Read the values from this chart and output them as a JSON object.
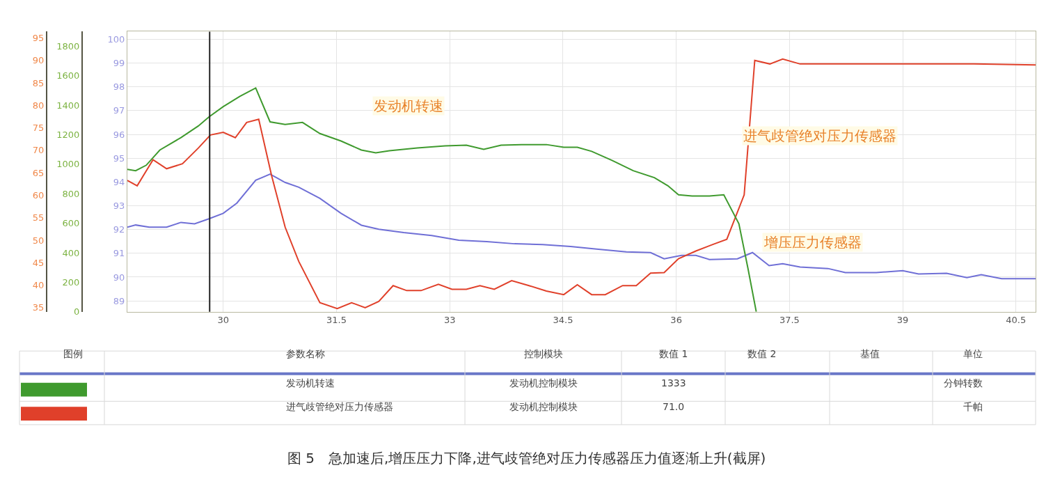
{
  "chart_data": {
    "type": "line",
    "series": [
      {
        "name": "发动机转速",
        "color": "#3f9a2e",
        "axis": "y3",
        "x": [
          28.73,
          28.84,
          28.98,
          29.16,
          29.44,
          29.67,
          29.81,
          30.0,
          30.22,
          30.43,
          30.62,
          30.82,
          31.05,
          31.28,
          31.56,
          31.83,
          32.02,
          32.2,
          32.57,
          32.94,
          33.22,
          33.45,
          33.68,
          33.95,
          34.28,
          34.51,
          34.69,
          34.88,
          35.15,
          35.43,
          35.71,
          35.89,
          36.03,
          36.21,
          36.44,
          36.63,
          36.83,
          36.95,
          37.06
        ],
        "values": [
          965,
          956,
          993,
          1096,
          1180,
          1259,
          1320,
          1390,
          1460,
          1516,
          1287,
          1269,
          1283,
          1208,
          1157,
          1096,
          1077,
          1091,
          1110,
          1124,
          1129,
          1101,
          1129,
          1133,
          1133,
          1115,
          1115,
          1087,
          1026,
          956,
          909,
          854,
          793,
          784,
          784,
          793,
          597,
          294,
          0
        ]
      },
      {
        "name": "进气歧管绝对压力传感器",
        "color": "#e0402a",
        "axis": "y2",
        "x": [
          28.73,
          28.86,
          29.07,
          29.25,
          29.46,
          29.67,
          29.83,
          30.0,
          30.16,
          30.31,
          30.47,
          30.64,
          30.82,
          31.0,
          31.28,
          31.51,
          31.7,
          31.88,
          32.06,
          32.25,
          32.43,
          32.62,
          32.85,
          33.03,
          33.22,
          33.4,
          33.59,
          33.82,
          34.05,
          34.28,
          34.51,
          34.69,
          34.88,
          35.06,
          35.29,
          35.47,
          35.66,
          35.84,
          36.03,
          36.26,
          36.49,
          36.67,
          36.9,
          37.04,
          37.24,
          37.41,
          37.64,
          38.1,
          39.02,
          39.94,
          40.76
        ],
        "values": [
          63.3,
          62.1,
          67.9,
          65.9,
          67.0,
          70.5,
          73.4,
          74.0,
          72.8,
          76.2,
          76.9,
          64.4,
          52.9,
          45.3,
          36.1,
          34.8,
          36.1,
          35.0,
          36.4,
          39.9,
          38.8,
          38.8,
          40.2,
          39.1,
          39.1,
          39.9,
          39.1,
          41.0,
          39.9,
          38.7,
          37.9,
          40.1,
          37.9,
          37.9,
          39.9,
          39.9,
          42.7,
          42.8,
          45.9,
          47.6,
          49.1,
          50.2,
          60.1,
          90.0,
          89.2,
          90.3,
          89.2,
          89.2,
          89.2,
          89.2,
          89.0
        ]
      },
      {
        "name": "增压压力传感器",
        "color": "#6f6fd6",
        "x": [
          28.73,
          28.84,
          29.02,
          29.25,
          29.44,
          29.62,
          29.81,
          30.0,
          30.18,
          30.43,
          30.62,
          30.82,
          31.0,
          31.28,
          31.56,
          31.83,
          32.06,
          32.39,
          32.76,
          33.12,
          33.49,
          33.86,
          34.23,
          34.6,
          34.97,
          35.34,
          35.66,
          35.84,
          36.07,
          36.26,
          36.44,
          36.81,
          37.01,
          37.23,
          37.41,
          37.64,
          38.01,
          38.24,
          38.65,
          39.0,
          39.21,
          39.58,
          39.85,
          40.04,
          40.31,
          40.76
        ],
        "values": [
          92.1,
          92.19,
          92.1,
          92.1,
          92.3,
          92.24,
          92.45,
          92.68,
          93.11,
          94.07,
          94.33,
          93.98,
          93.78,
          93.31,
          92.68,
          92.18,
          92.01,
          91.87,
          91.75,
          91.55,
          91.49,
          91.4,
          91.37,
          91.29,
          91.17,
          91.06,
          91.03,
          90.77,
          90.91,
          90.91,
          90.74,
          90.77,
          91.03,
          90.48,
          90.56,
          90.42,
          90.36,
          90.19,
          90.19,
          90.27,
          90.13,
          90.16,
          89.98,
          90.1,
          89.93,
          89.93
        ]
      }
    ],
    "xlim": [
      28.73,
      40.76
    ],
    "xticks": [
      30,
      31.5,
      33,
      34.5,
      36,
      37.5,
      39,
      40.5
    ],
    "ylim": [
      88.54,
      100.32
    ],
    "yticks": [
      89,
      90,
      91,
      92,
      93,
      94,
      95,
      96,
      97,
      98,
      99,
      100
    ],
    "y2lim": [
      34.08,
      96.38
    ],
    "y2ticks": [
      35,
      40,
      45,
      50,
      55,
      60,
      65,
      70,
      75,
      80,
      85,
      90,
      95
    ],
    "y3lim": [
      0,
      1898
    ],
    "y3ticks": [
      0,
      200,
      400,
      600,
      800,
      1000,
      1200,
      1400,
      1600,
      1800
    ],
    "ref_lines": [
      {
        "axis": "x",
        "value": 29.82,
        "color": "#222222"
      }
    ],
    "grid": true,
    "legend": false,
    "marker": "none",
    "line_style": "solid",
    "annotations": [
      "图例",
      "参数名称",
      "控制模块",
      "数值 1",
      "数值 2",
      "基值",
      "单位",
      "发动机控制模块",
      "1333",
      "分钟转数",
      "发动机控制模块",
      "71.0",
      "千帕",
      "图 5　急加速后,增压压力下降,进气歧管绝对压力传感器压力值逐渐上升(截屏)"
    ]
  }
}
